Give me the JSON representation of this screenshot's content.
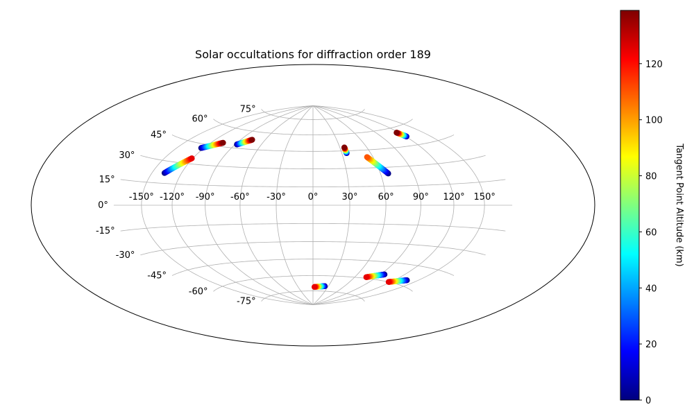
{
  "chart_data": {
    "type": "scatter",
    "projection": "hammer",
    "title": "Solar occultations for diffraction order 189",
    "grid": true,
    "longitude_ticks": [
      -150,
      -120,
      -90,
      -60,
      -30,
      0,
      30,
      60,
      90,
      120,
      150
    ],
    "latitude_ticks": [
      -75,
      -60,
      -45,
      -30,
      -15,
      0,
      15,
      30,
      45,
      60,
      75
    ],
    "longitude_tick_labels": [
      "-150°",
      "-120°",
      "-90°",
      "-60°",
      "-30°",
      "0°",
      "30°",
      "60°",
      "90°",
      "120°",
      "150°"
    ],
    "latitude_tick_labels": [
      "-75°",
      "-60°",
      "-45°",
      "-30°",
      "-15°",
      "0°",
      "15°",
      "30°",
      "45°",
      "60°",
      "75°"
    ],
    "colorbar": {
      "label": "Tangent Point Altitude (km)",
      "colormap": "jet",
      "min": 0,
      "max": 139,
      "ticks": [
        0,
        20,
        40,
        60,
        80,
        100,
        120
      ],
      "tick_labels": [
        "0",
        "20",
        "40",
        "60",
        "80",
        "100",
        "120"
      ]
    },
    "tracks": [
      {
        "lon_start": -137,
        "lat_start": 22,
        "alt_start": 0,
        "lon_end": -121,
        "lat_end": 34,
        "alt_end": 125
      },
      {
        "lon_start": -123,
        "lat_start": 42,
        "alt_start": 0,
        "lon_end": -106,
        "lat_end": 48,
        "alt_end": 139
      },
      {
        "lon_start": -88,
        "lat_start": 48,
        "alt_start": 0,
        "lon_end": -76,
        "lat_end": 53,
        "alt_end": 139
      },
      {
        "lon_start": 35,
        "lat_start": 43,
        "alt_start": 0,
        "lon_end": 35,
        "lat_end": 48,
        "alt_end": 139
      },
      {
        "lon_start": 67,
        "lat_start": 25,
        "alt_start": 0,
        "lon_end": 54,
        "lat_end": 39,
        "alt_end": 110
      },
      {
        "lon_start": 121,
        "lat_start": 52,
        "alt_start": 0,
        "lon_end": 117,
        "lat_end": 56,
        "alt_end": 139
      },
      {
        "lon_start": 23,
        "lat_start": -70,
        "alt_start": 0,
        "lon_end": 3,
        "lat_end": -71,
        "alt_end": 125
      },
      {
        "lon_start": 95,
        "lat_start": -55,
        "alt_start": 0,
        "lon_end": 76,
        "lat_end": -59,
        "alt_end": 125
      },
      {
        "lon_start": 136,
        "lat_start": -56,
        "alt_start": 0,
        "lon_end": 117,
        "lat_end": -60,
        "alt_end": 125
      }
    ]
  }
}
